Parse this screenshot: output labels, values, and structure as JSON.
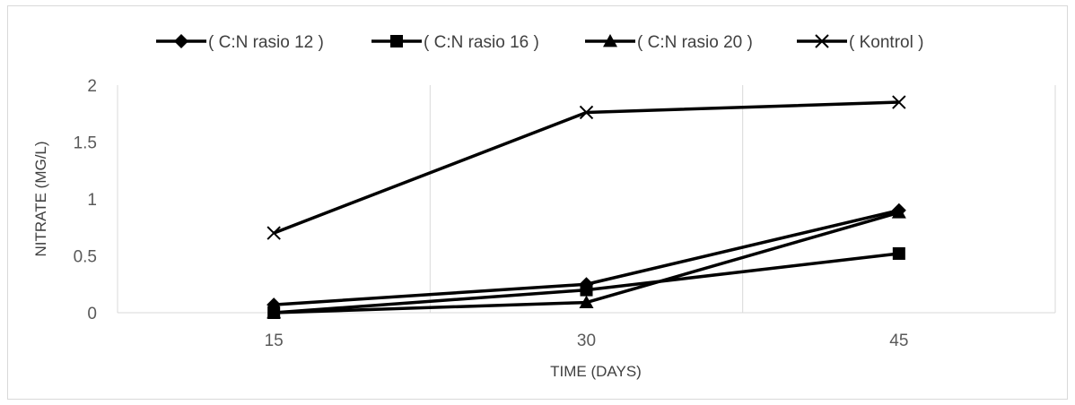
{
  "chart_data": {
    "type": "line",
    "title": "",
    "xlabel": "TIME (DAYS)",
    "ylabel": "NITRATE (MG/L)",
    "categories": [
      "15",
      "30",
      "45"
    ],
    "ylim": [
      0,
      2
    ],
    "yticks": [
      "0",
      "0.5",
      "1",
      "1.5",
      "2"
    ],
    "grid": "vertical",
    "legend_position": "top",
    "series": [
      {
        "name": "( C:N rasio 12 )",
        "marker": "diamond",
        "color": "#000000",
        "values": [
          0.07,
          0.25,
          0.9
        ]
      },
      {
        "name": "( C:N rasio 16 )",
        "marker": "square",
        "color": "#000000",
        "values": [
          0.0,
          0.2,
          0.52
        ]
      },
      {
        "name": "( C:N rasio 20 )",
        "marker": "triangle",
        "color": "#000000",
        "values": [
          0.0,
          0.09,
          0.88
        ]
      },
      {
        "name": "( Kontrol )",
        "marker": "x",
        "color": "#000000",
        "values": [
          0.7,
          1.76,
          1.85
        ]
      }
    ]
  }
}
